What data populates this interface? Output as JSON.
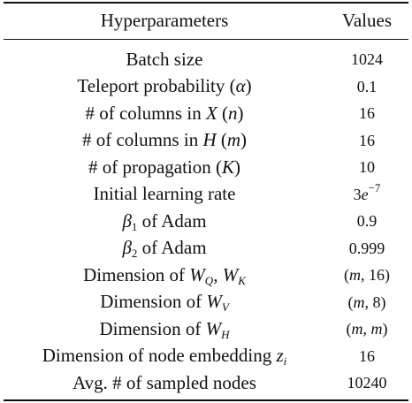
{
  "table": {
    "header": {
      "hyperparameters": "Hyperparameters",
      "values": "Values"
    },
    "rows": [
      {
        "label": [
          {
            "t": "Batch size"
          }
        ],
        "value": [
          {
            "t": "1024"
          }
        ]
      },
      {
        "label": [
          {
            "t": "Teleport probability ("
          },
          {
            "t": "α",
            "s": "i"
          },
          {
            "t": ")"
          }
        ],
        "value": [
          {
            "t": "0.1"
          }
        ]
      },
      {
        "label": [
          {
            "t": "# of columns in "
          },
          {
            "t": "X",
            "s": "i"
          },
          {
            "t": " ("
          },
          {
            "t": "n",
            "s": "i"
          },
          {
            "t": ")"
          }
        ],
        "value": [
          {
            "t": "16"
          }
        ]
      },
      {
        "label": [
          {
            "t": "# of columns in "
          },
          {
            "t": "H",
            "s": "i"
          },
          {
            "t": " ("
          },
          {
            "t": "m",
            "s": "i"
          },
          {
            "t": ")"
          }
        ],
        "value": [
          {
            "t": "16"
          }
        ]
      },
      {
        "label": [
          {
            "t": "# of propagation ("
          },
          {
            "t": "K",
            "s": "i"
          },
          {
            "t": ")"
          }
        ],
        "value": [
          {
            "t": "10"
          }
        ]
      },
      {
        "label": [
          {
            "t": "Initial learning rate"
          }
        ],
        "value": [
          {
            "t": "3"
          },
          {
            "t": "e",
            "s": "i"
          },
          {
            "t": "−7",
            "s": "sup"
          }
        ]
      },
      {
        "label": [
          {
            "t": "β",
            "s": "i"
          },
          {
            "t": "1",
            "s": "sub"
          },
          {
            "t": " of Adam"
          }
        ],
        "value": [
          {
            "t": "0.9"
          }
        ]
      },
      {
        "label": [
          {
            "t": "β",
            "s": "i"
          },
          {
            "t": "2",
            "s": "sub"
          },
          {
            "t": " of Adam"
          }
        ],
        "value": [
          {
            "t": "0.999"
          }
        ]
      },
      {
        "label": [
          {
            "t": "Dimension of "
          },
          {
            "t": "W",
            "s": "i"
          },
          {
            "t": "Q",
            "s": "subi"
          },
          {
            "t": ", "
          },
          {
            "t": "W",
            "s": "i"
          },
          {
            "t": "K",
            "s": "subi"
          }
        ],
        "value": [
          {
            "t": "("
          },
          {
            "t": "m",
            "s": "i"
          },
          {
            "t": ", 16)"
          }
        ]
      },
      {
        "label": [
          {
            "t": "Dimension of "
          },
          {
            "t": "W",
            "s": "i"
          },
          {
            "t": "V",
            "s": "subi"
          }
        ],
        "value": [
          {
            "t": "("
          },
          {
            "t": "m",
            "s": "i"
          },
          {
            "t": ", 8)"
          }
        ]
      },
      {
        "label": [
          {
            "t": "Dimension of "
          },
          {
            "t": "W",
            "s": "i"
          },
          {
            "t": "H",
            "s": "subi"
          }
        ],
        "value": [
          {
            "t": "("
          },
          {
            "t": "m",
            "s": "i"
          },
          {
            "t": ", "
          },
          {
            "t": "m",
            "s": "i"
          },
          {
            "t": ")"
          }
        ]
      },
      {
        "label": [
          {
            "t": "Dimension of node embedding "
          },
          {
            "t": "z",
            "s": "i"
          },
          {
            "t": "i",
            "s": "subi"
          }
        ],
        "value": [
          {
            "t": "16"
          }
        ]
      },
      {
        "label": [
          {
            "t": "Avg. # of sampled nodes"
          }
        ],
        "value": [
          {
            "t": "10240"
          }
        ]
      }
    ]
  }
}
